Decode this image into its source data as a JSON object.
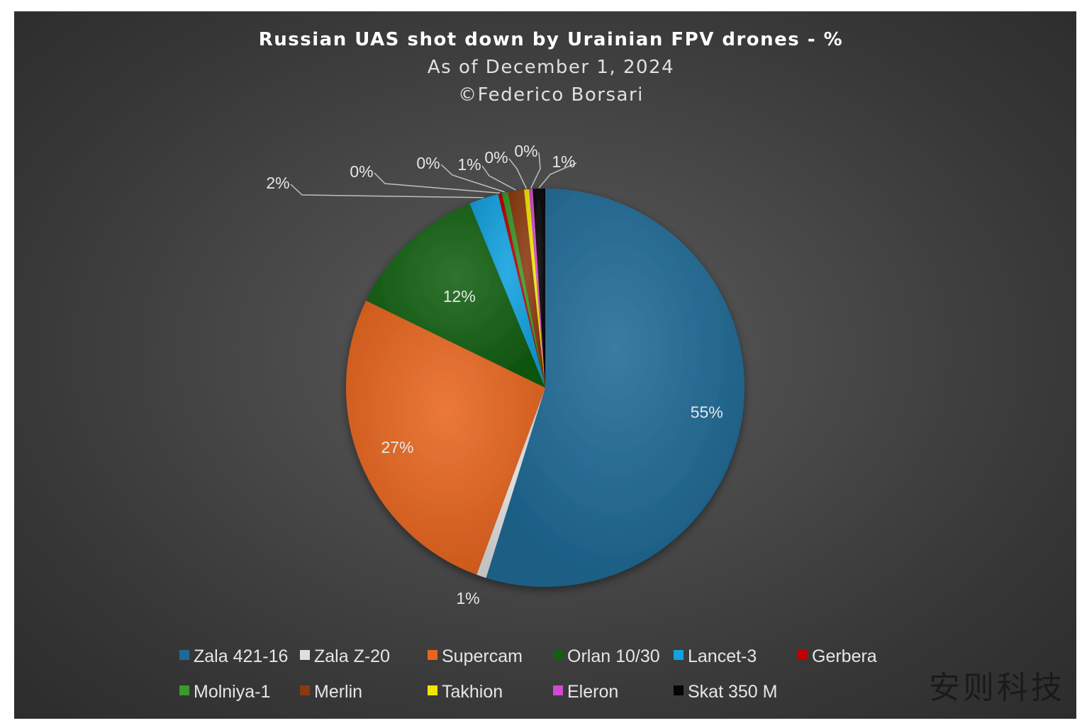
{
  "chart_data": {
    "type": "pie",
    "title": "Russian UAS shot down by Urainian FPV drones - %",
    "subtitle": "As of December 1, 2024",
    "credit": "©Federico Borsari",
    "categories": [
      "Zala 421-16",
      "Zala Z-20",
      "Supercam",
      "Orlan 10/30",
      "Lancet-3",
      "Gerbera",
      "Molniya-1",
      "Merlin",
      "Takhion",
      "Eleron",
      "Skat 350 M"
    ],
    "values": [
      54.8,
      0.8,
      26.6,
      11.6,
      2.4,
      0.3,
      0.5,
      1.3,
      0.4,
      0.3,
      1.0
    ],
    "labels": [
      "55%",
      "1%",
      "27%",
      "12%",
      "2%",
      "0%",
      "0%",
      "1%",
      "0%",
      "0%",
      "1%"
    ],
    "colors": [
      "#1f6a96",
      "#dedede",
      "#e8661f",
      "#126012",
      "#12a2e0",
      "#c00000",
      "#3a9a2a",
      "#8b3a10",
      "#f2e600",
      "#d04ad0",
      "#050505"
    ],
    "legend_position": "bottom"
  },
  "watermark": "安则科技"
}
